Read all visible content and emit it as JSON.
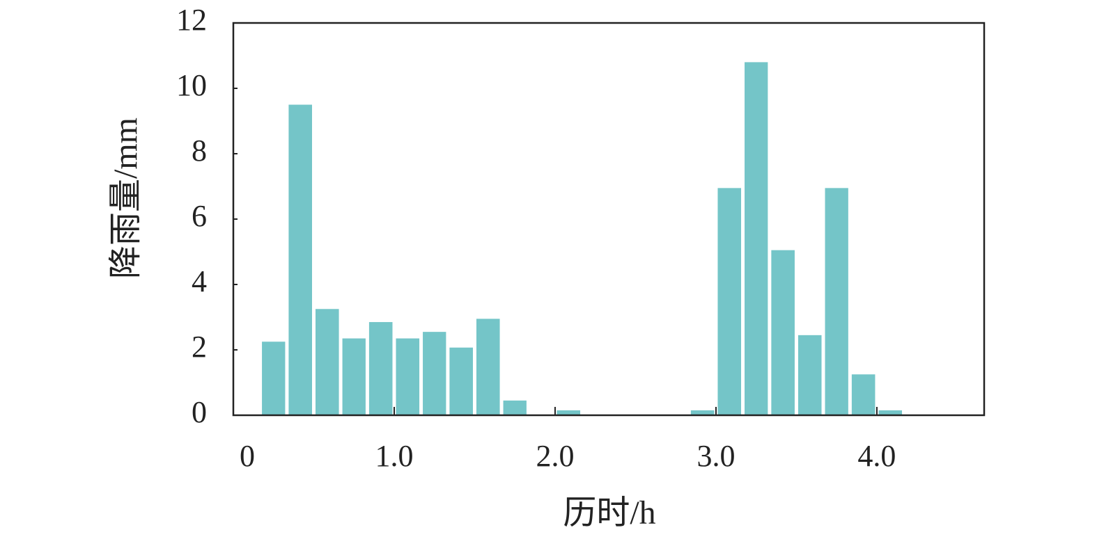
{
  "chart_data": {
    "type": "histogram",
    "x_label": "历时/h",
    "y_label": "降雨量/mm",
    "bins": [
      0.167,
      0.333,
      0.5,
      0.667,
      0.833,
      1,
      1.167,
      1.333,
      1.5,
      1.667,
      1.833,
      2,
      2.167,
      2.333,
      2.5,
      2.667,
      2.833,
      3,
      3.167,
      3.333,
      3.5,
      3.667,
      3.833,
      4,
      4.167
    ],
    "values": [
      2.25,
      9.5,
      3.25,
      2.35,
      2.85,
      2.35,
      2.55,
      2.07,
      2.95,
      0.45,
      0,
      0.15,
      0,
      0,
      0,
      0,
      0.15,
      6.95,
      10.8,
      5.05,
      2.45,
      6.95,
      1.25,
      0.15
    ],
    "color": "#74c5c8",
    "xlim": [
      0,
      4.667
    ],
    "xticks": [
      0,
      {
        "value": 1,
        "label": "1.0"
      },
      {
        "value": 2,
        "label": "2.0"
      },
      {
        "value": 3,
        "label": "3.0"
      },
      {
        "value": 4,
        "label": "4.0"
      }
    ],
    "ylim": [
      0,
      12
    ],
    "yticks": [
      0,
      2,
      4,
      6,
      8,
      10,
      12
    ],
    "grid": false
  }
}
